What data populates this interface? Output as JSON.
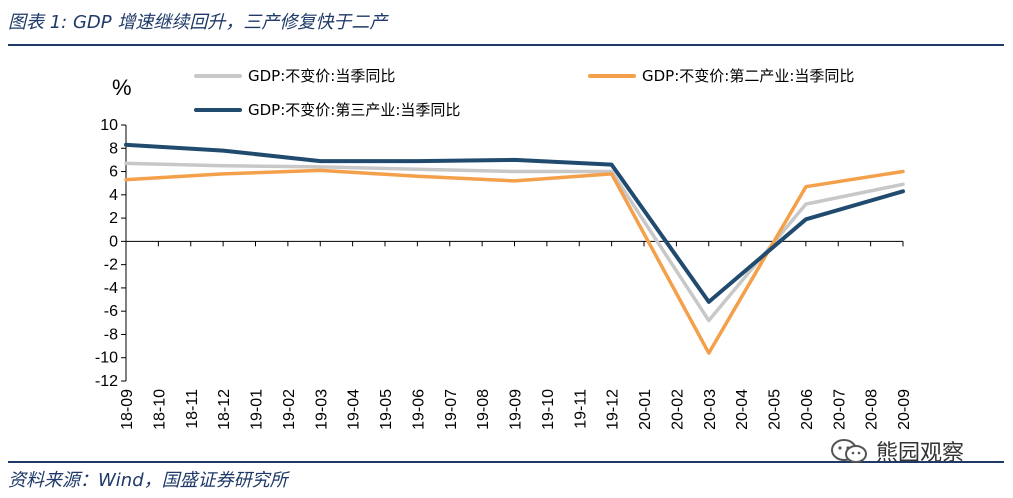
{
  "header": {
    "title": "图表 1:  GDP 增速继续回升，三产修复快于二产"
  },
  "footer": {
    "source": "资料来源：Wind，国盛证券研究所",
    "watermark": "熊园观察"
  },
  "chart_data": {
    "type": "line",
    "unit": "%",
    "x": [
      "18-09",
      "18-10",
      "18-11",
      "18-12",
      "19-01",
      "19-02",
      "19-03",
      "19-04",
      "19-05",
      "19-06",
      "19-07",
      "19-08",
      "19-09",
      "19-10",
      "19-11",
      "19-12",
      "20-01",
      "20-02",
      "20-03",
      "20-04",
      "20-05",
      "20-06",
      "20-07",
      "20-08",
      "20-09"
    ],
    "ylim": [
      -12,
      10
    ],
    "yticks": [
      10,
      8,
      6,
      4,
      2,
      0,
      -2,
      -4,
      -6,
      -8,
      -10,
      -12
    ],
    "grid": false,
    "legend_position": "top",
    "series": [
      {
        "name": "GDP:不变价:当季同比",
        "color": "#c8c8c8",
        "values": [
          6.7,
          null,
          null,
          6.5,
          null,
          null,
          6.4,
          null,
          null,
          6.2,
          null,
          null,
          6.0,
          null,
          null,
          6.0,
          null,
          null,
          -6.8,
          null,
          null,
          3.2,
          null,
          null,
          4.9
        ]
      },
      {
        "name": "GDP:不变价:第二产业:当季同比",
        "color": "#f4a04a",
        "values": [
          5.3,
          null,
          null,
          5.8,
          null,
          null,
          6.1,
          null,
          null,
          5.6,
          null,
          null,
          5.2,
          null,
          null,
          5.8,
          null,
          null,
          -9.6,
          null,
          null,
          4.7,
          null,
          null,
          6.0
        ]
      },
      {
        "name": "GDP:不变价:第三产业:当季同比",
        "color": "#214b6e",
        "values": [
          8.3,
          null,
          null,
          7.8,
          null,
          null,
          6.9,
          null,
          null,
          6.9,
          null,
          null,
          7.0,
          null,
          null,
          6.6,
          null,
          null,
          -5.2,
          null,
          null,
          1.9,
          null,
          null,
          4.3
        ]
      }
    ]
  }
}
